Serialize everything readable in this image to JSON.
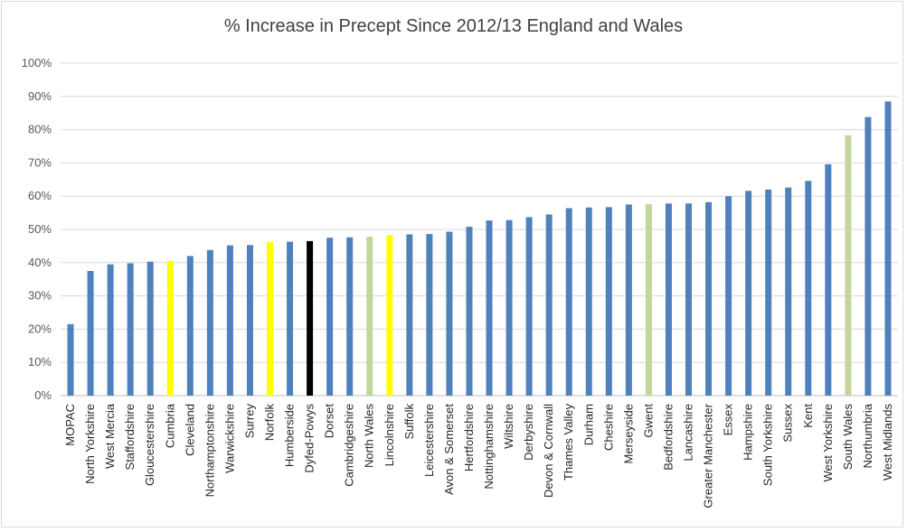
{
  "chart_data": {
    "type": "bar",
    "title": "% Increase in Precept Since 2012/13 England and Wales",
    "xlabel": "",
    "ylabel": "",
    "ylim": [
      0,
      100
    ],
    "yticks": [
      "0%",
      "10%",
      "20%",
      "30%",
      "40%",
      "50%",
      "60%",
      "70%",
      "80%",
      "90%",
      "100%"
    ],
    "grid": true,
    "legend": "none",
    "default_color": "#4f81bd",
    "categories": [
      "MOPAC",
      "North Yorkshire",
      "West Mercia",
      "Staffordshire",
      "Gloucestershire",
      "Cumbria",
      "Cleveland",
      "Northamptonshire",
      "Warwickshire",
      "Surrey",
      "Norfolk",
      "Humberside",
      "Dyfed-Powys",
      "Dorset",
      "Cambridgeshire",
      "North Wales",
      "Lincolnshire",
      "Suffolk",
      "Leicestershire",
      "Avon & Somerset",
      "Hertfordshire",
      "Nottinghamshire",
      "Wiltshire",
      "Derbyshire",
      "Devon & Cornwall",
      "Thames Valley",
      "Durham",
      "Cheshire",
      "Merseyside",
      "Gwent",
      "Bedfordshire",
      "Lancashire",
      "Greater Manchester",
      "Essex",
      "Hampshire",
      "South Yorkshire",
      "Sussex",
      "Kent",
      "West Yorkshire",
      "South Wales",
      "Northumbria",
      "West Midlands"
    ],
    "values": [
      21.5,
      37.5,
      39.5,
      39.8,
      40.3,
      40.5,
      42.0,
      43.8,
      45.2,
      45.3,
      46.2,
      46.3,
      46.5,
      47.5,
      47.6,
      47.8,
      48.3,
      48.5,
      48.6,
      49.3,
      50.8,
      52.7,
      52.8,
      53.7,
      54.5,
      56.4,
      56.6,
      56.7,
      57.5,
      57.6,
      57.8,
      57.8,
      58.2,
      60.0,
      61.6,
      62.0,
      62.6,
      64.6,
      69.6,
      78.3,
      83.8,
      88.5
    ],
    "colors": [
      "#4f81bd",
      "#4f81bd",
      "#4f81bd",
      "#4f81bd",
      "#4f81bd",
      "#ffff00",
      "#4f81bd",
      "#4f81bd",
      "#4f81bd",
      "#4f81bd",
      "#ffff00",
      "#4f81bd",
      "#000000",
      "#4f81bd",
      "#4f81bd",
      "#c3d69b",
      "#ffff00",
      "#4f81bd",
      "#4f81bd",
      "#4f81bd",
      "#4f81bd",
      "#4f81bd",
      "#4f81bd",
      "#4f81bd",
      "#4f81bd",
      "#4f81bd",
      "#4f81bd",
      "#4f81bd",
      "#4f81bd",
      "#c3d69b",
      "#4f81bd",
      "#4f81bd",
      "#4f81bd",
      "#4f81bd",
      "#4f81bd",
      "#4f81bd",
      "#4f81bd",
      "#4f81bd",
      "#4f81bd",
      "#c3d69b",
      "#4f81bd",
      "#4f81bd"
    ]
  }
}
